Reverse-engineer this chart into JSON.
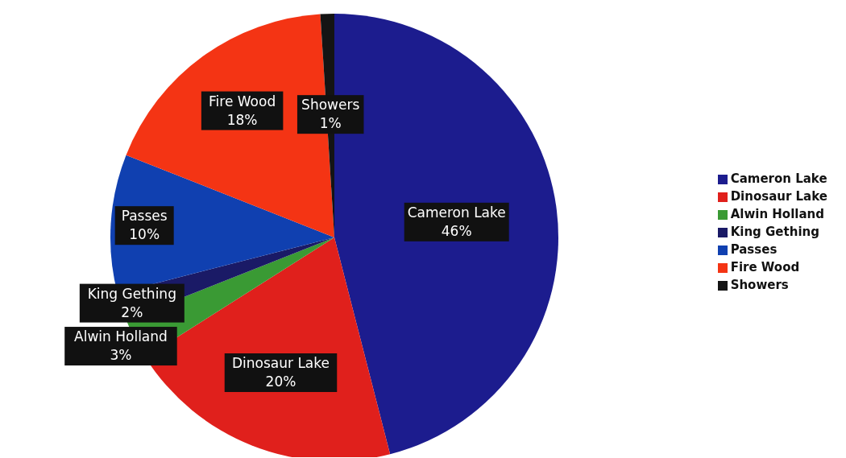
{
  "chart_data": {
    "type": "pie",
    "categories": [
      "Cameron Lake",
      "Dinosaur Lake",
      "Alwin Holland",
      "King Gething",
      "Passes",
      "Fire Wood",
      "Showers"
    ],
    "values": [
      46,
      20,
      3,
      2,
      10,
      18,
      1
    ],
    "colors": [
      "#1c1c8e",
      "#e0201c",
      "#3a9a34",
      "#1a1a66",
      "#1040b0",
      "#f43414",
      "#141414"
    ],
    "value_labels": [
      "46%",
      "20%",
      "3%",
      "2%",
      "10%",
      "18%",
      "1%"
    ],
    "legend": "right"
  }
}
